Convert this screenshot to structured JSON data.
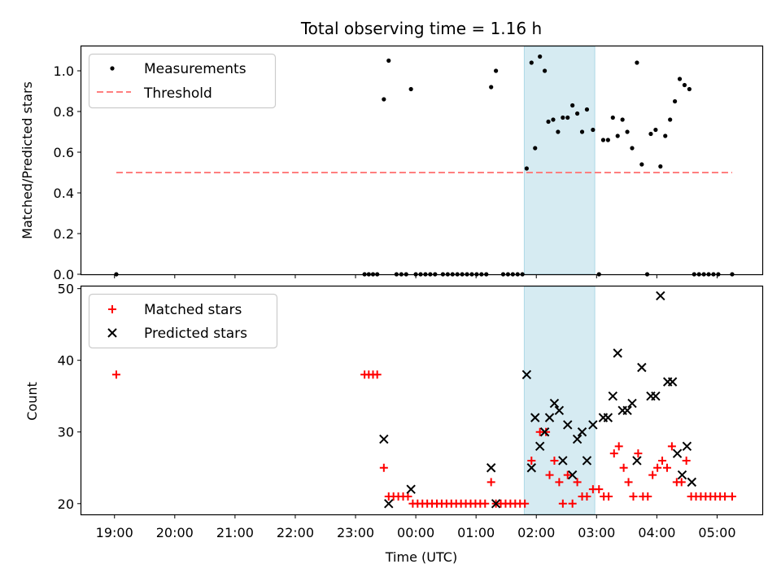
{
  "chart_data": [
    {
      "type": "scatter",
      "title": "Total observing time = 1.16 h",
      "ylabel": "Matched/Predicted stars",
      "xlabel": "",
      "xlim": [
        -0.55,
        10.75
      ],
      "ylim": [
        0,
        1.12
      ],
      "yticks": [
        0.0,
        0.2,
        0.4,
        0.6,
        0.8,
        1.0
      ],
      "ytick_labels": [
        "0.0",
        "0.2",
        "0.4",
        "0.6",
        "0.8",
        "1.0"
      ],
      "highlight_span": [
        6.8,
        7.97
      ],
      "grid": false,
      "legend_placement": "upper-left",
      "legend": [
        "Measurements",
        "Threshold"
      ],
      "series": [
        {
          "name": "Measurements",
          "marker": "dot",
          "color": "#000000",
          "points": [
            [
              0.03,
              0.0
            ],
            [
              4.15,
              0.0
            ],
            [
              4.22,
              0.0
            ],
            [
              4.29,
              0.0
            ],
            [
              4.36,
              0.0
            ],
            [
              4.47,
              0.86
            ],
            [
              4.55,
              1.05
            ],
            [
              4.68,
              0.0
            ],
            [
              4.76,
              0.0
            ],
            [
              4.84,
              0.0
            ],
            [
              4.92,
              0.91
            ],
            [
              5.0,
              0.0
            ],
            [
              5.08,
              0.0
            ],
            [
              5.16,
              0.0
            ],
            [
              5.24,
              0.0
            ],
            [
              5.32,
              0.0
            ],
            [
              5.45,
              0.0
            ],
            [
              5.53,
              0.0
            ],
            [
              5.61,
              0.0
            ],
            [
              5.69,
              0.0
            ],
            [
              5.77,
              0.0
            ],
            [
              5.85,
              0.0
            ],
            [
              5.93,
              0.0
            ],
            [
              6.01,
              0.0
            ],
            [
              6.09,
              0.0
            ],
            [
              6.17,
              0.0
            ],
            [
              6.25,
              0.92
            ],
            [
              6.33,
              1.0
            ],
            [
              6.45,
              0.0
            ],
            [
              6.53,
              0.0
            ],
            [
              6.61,
              0.0
            ],
            [
              6.69,
              0.0
            ],
            [
              6.77,
              0.0
            ],
            [
              6.84,
              0.52
            ],
            [
              6.92,
              1.04
            ],
            [
              6.98,
              0.62
            ],
            [
              7.06,
              1.07
            ],
            [
              7.14,
              1.0
            ],
            [
              7.2,
              0.75
            ],
            [
              7.28,
              0.76
            ],
            [
              7.36,
              0.7
            ],
            [
              7.44,
              0.77
            ],
            [
              7.52,
              0.77
            ],
            [
              7.6,
              0.83
            ],
            [
              7.68,
              0.79
            ],
            [
              7.76,
              0.7
            ],
            [
              7.84,
              0.81
            ],
            [
              7.94,
              0.71
            ],
            [
              8.04,
              0.0
            ],
            [
              8.11,
              0.66
            ],
            [
              8.19,
              0.66
            ],
            [
              8.27,
              0.77
            ],
            [
              8.35,
              0.68
            ],
            [
              8.43,
              0.76
            ],
            [
              8.51,
              0.7
            ],
            [
              8.59,
              0.62
            ],
            [
              8.67,
              1.04
            ],
            [
              8.75,
              0.54
            ],
            [
              8.84,
              0.0
            ],
            [
              8.9,
              0.69
            ],
            [
              8.98,
              0.71
            ],
            [
              9.06,
              0.53
            ],
            [
              9.14,
              0.68
            ],
            [
              9.22,
              0.76
            ],
            [
              9.3,
              0.85
            ],
            [
              9.38,
              0.96
            ],
            [
              9.46,
              0.93
            ],
            [
              9.54,
              0.91
            ],
            [
              9.62,
              0.0
            ],
            [
              9.7,
              0.0
            ],
            [
              9.78,
              0.0
            ],
            [
              9.86,
              0.0
            ],
            [
              9.94,
              0.0
            ],
            [
              10.02,
              0.0
            ],
            [
              10.25,
              0.0
            ]
          ]
        },
        {
          "name": "Threshold",
          "type": "line",
          "style": "dashed",
          "color": "#ff7f7f",
          "x": [
            0.03,
            10.25
          ],
          "y": [
            0.5,
            0.5
          ]
        }
      ]
    },
    {
      "type": "scatter",
      "title": "",
      "ylabel": "Count",
      "xlabel": "Time (UTC)",
      "xlim": [
        -0.55,
        10.75
      ],
      "ylim": [
        18.5,
        50.3
      ],
      "yticks": [
        20,
        30,
        40,
        50
      ],
      "ytick_labels": [
        "20",
        "30",
        "40",
        "50"
      ],
      "xticks": [
        0,
        1,
        2,
        3,
        4,
        5,
        6,
        7,
        8,
        9,
        10
      ],
      "xtick_labels": [
        "19:00",
        "20:00",
        "21:00",
        "22:00",
        "23:00",
        "00:00",
        "01:00",
        "02:00",
        "03:00",
        "04:00",
        "05:00"
      ],
      "highlight_span": [
        6.8,
        7.97
      ],
      "grid": false,
      "legend_placement": "upper-left",
      "legend": [
        "Matched stars",
        "Predicted stars"
      ],
      "series": [
        {
          "name": "Matched stars",
          "marker": "plus",
          "color": "#ff0000",
          "points": [
            [
              0.03,
              38
            ],
            [
              4.15,
              38
            ],
            [
              4.22,
              38
            ],
            [
              4.29,
              38
            ],
            [
              4.36,
              38
            ],
            [
              4.47,
              25
            ],
            [
              4.55,
              21
            ],
            [
              4.63,
              21
            ],
            [
              4.71,
              21
            ],
            [
              4.79,
              21
            ],
            [
              4.87,
              21
            ],
            [
              4.95,
              20
            ],
            [
              5.03,
              20
            ],
            [
              5.11,
              20
            ],
            [
              5.19,
              20
            ],
            [
              5.27,
              20
            ],
            [
              5.35,
              20
            ],
            [
              5.43,
              20
            ],
            [
              5.51,
              20
            ],
            [
              5.59,
              20
            ],
            [
              5.67,
              20
            ],
            [
              5.75,
              20
            ],
            [
              5.83,
              20
            ],
            [
              5.91,
              20
            ],
            [
              5.99,
              20
            ],
            [
              6.07,
              20
            ],
            [
              6.15,
              20
            ],
            [
              6.25,
              23
            ],
            [
              6.33,
              20
            ],
            [
              6.41,
              20
            ],
            [
              6.49,
              20
            ],
            [
              6.57,
              20
            ],
            [
              6.65,
              20
            ],
            [
              6.73,
              20
            ],
            [
              6.81,
              20
            ],
            [
              6.92,
              26
            ],
            [
              7.06,
              30
            ],
            [
              7.16,
              30
            ],
            [
              7.22,
              24
            ],
            [
              7.3,
              26
            ],
            [
              7.38,
              23
            ],
            [
              7.44,
              20
            ],
            [
              7.52,
              24
            ],
            [
              7.6,
              20
            ],
            [
              7.68,
              23
            ],
            [
              7.76,
              21
            ],
            [
              7.84,
              21
            ],
            [
              7.94,
              22
            ],
            [
              8.04,
              22
            ],
            [
              8.12,
              21
            ],
            [
              8.2,
              21
            ],
            [
              8.29,
              27
            ],
            [
              8.37,
              28
            ],
            [
              8.45,
              25
            ],
            [
              8.53,
              23
            ],
            [
              8.61,
              21
            ],
            [
              8.69,
              27
            ],
            [
              8.77,
              21
            ],
            [
              8.85,
              21
            ],
            [
              8.93,
              24
            ],
            [
              9.01,
              25
            ],
            [
              9.09,
              26
            ],
            [
              9.17,
              25
            ],
            [
              9.25,
              28
            ],
            [
              9.33,
              23
            ],
            [
              9.41,
              23
            ],
            [
              9.49,
              26
            ],
            [
              9.57,
              21
            ],
            [
              9.65,
              21
            ],
            [
              9.73,
              21
            ],
            [
              9.81,
              21
            ],
            [
              9.89,
              21
            ],
            [
              9.97,
              21
            ],
            [
              10.05,
              21
            ],
            [
              10.13,
              21
            ],
            [
              10.25,
              21
            ]
          ]
        },
        {
          "name": "Predicted stars",
          "marker": "x",
          "color": "#000000",
          "points": [
            [
              4.47,
              29
            ],
            [
              4.55,
              20
            ],
            [
              4.92,
              22
            ],
            [
              6.25,
              25
            ],
            [
              6.33,
              20
            ],
            [
              6.84,
              38
            ],
            [
              6.92,
              25
            ],
            [
              6.98,
              32
            ],
            [
              7.06,
              28
            ],
            [
              7.14,
              30
            ],
            [
              7.22,
              32
            ],
            [
              7.3,
              34
            ],
            [
              7.38,
              33
            ],
            [
              7.44,
              26
            ],
            [
              7.52,
              31
            ],
            [
              7.6,
              24
            ],
            [
              7.68,
              29
            ],
            [
              7.76,
              30
            ],
            [
              7.84,
              26
            ],
            [
              7.94,
              31
            ],
            [
              8.11,
              32
            ],
            [
              8.19,
              32
            ],
            [
              8.27,
              35
            ],
            [
              8.35,
              41
            ],
            [
              8.43,
              33
            ],
            [
              8.51,
              33
            ],
            [
              8.59,
              34
            ],
            [
              8.67,
              26
            ],
            [
              8.75,
              39
            ],
            [
              8.9,
              35
            ],
            [
              8.98,
              35
            ],
            [
              9.06,
              49
            ],
            [
              9.18,
              37
            ],
            [
              9.26,
              37
            ],
            [
              9.34,
              27
            ],
            [
              9.42,
              24
            ],
            [
              9.5,
              28
            ],
            [
              9.58,
              23
            ]
          ]
        }
      ]
    }
  ],
  "colors": {
    "highlight_fill": "#add8e6",
    "matched": "#ff0000",
    "predicted": "#000000",
    "threshold": "#ff7f7f",
    "measurements": "#000000"
  }
}
